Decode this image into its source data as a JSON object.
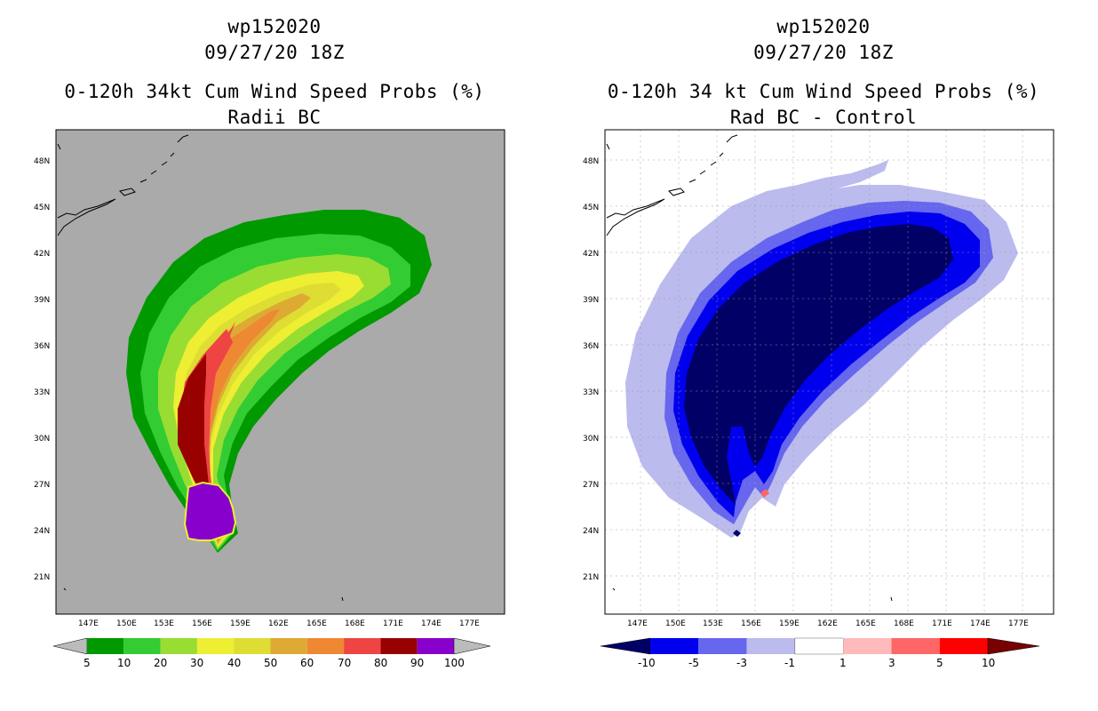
{
  "left_panel": {
    "title_line1": "wp152020",
    "title_line2": "09/27/20 18Z",
    "title_line3": "0-120h 34kt Cum Wind Speed Probs (%)",
    "title_line4": "Radii BC",
    "colorbar": {
      "labels": [
        "5",
        "10",
        "20",
        "30",
        "40",
        "50",
        "60",
        "70",
        "80",
        "90",
        "100"
      ],
      "colors": [
        "#009900",
        "#33cc33",
        "#99dd33",
        "#eeee33",
        "#dddd33",
        "#ddaa33",
        "#ee8833",
        "#ee4444",
        "#990000",
        "#8800cc"
      ],
      "under_color": "#bbbbbb",
      "over_color": "#bbbbbb"
    },
    "background_color": "#aaaaaa"
  },
  "right_panel": {
    "title_line1": "wp152020",
    "title_line2": "09/27/20 18Z",
    "title_line3": "0-120h 34 kt Cum Wind Speed Probs (%)",
    "title_line4": "Rad BC - Control",
    "colorbar": {
      "labels": [
        "-10",
        "-5",
        "-3",
        "-1",
        "1",
        "3",
        "5",
        "10"
      ],
      "colors": [
        "#0000ee",
        "#6666ee",
        "#bbbbee",
        "#ffffff",
        "#ffbbbb",
        "#ff6666",
        "#ff0000"
      ],
      "under_color": "#000066",
      "over_color": "#770000"
    },
    "background_color": "#ffffff"
  },
  "map": {
    "lon_labels": [
      "147E",
      "150E",
      "153E",
      "156E",
      "159E",
      "162E",
      "165E",
      "168E",
      "171E",
      "174E",
      "177E"
    ],
    "lat_labels": [
      "48N",
      "45N",
      "42N",
      "39N",
      "36N",
      "33N",
      "30N",
      "27N",
      "24N",
      "21N"
    ]
  }
}
